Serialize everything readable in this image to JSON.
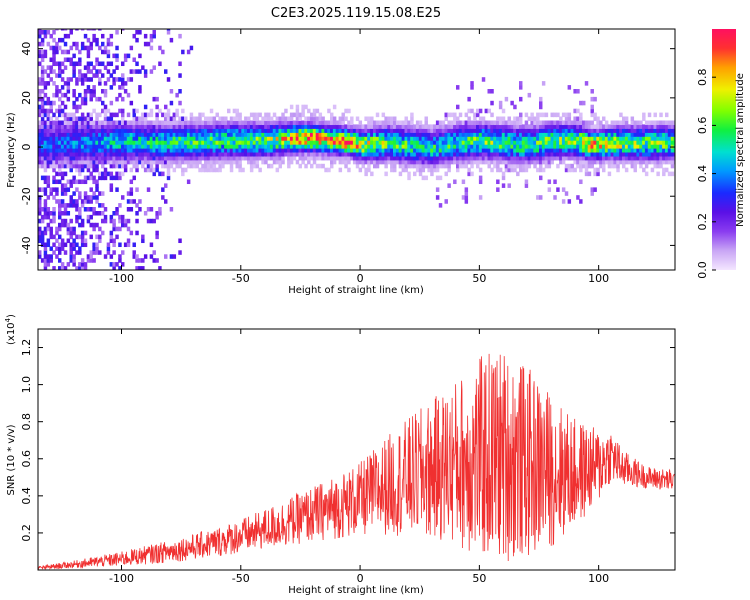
{
  "title": "C2E3.2025.119.15.08.E25",
  "chart_data": [
    {
      "type": "heatmap",
      "xlabel": "Height of straight line (km)",
      "ylabel": "Frequency (Hz)",
      "xlim": [
        -135,
        132
      ],
      "ylim": [
        -50,
        48
      ],
      "xticks": [
        -100,
        -50,
        0,
        50,
        100
      ],
      "yticks": [
        -40,
        -20,
        0,
        20,
        40
      ],
      "colorbar": {
        "label": "Normalized spectral amplitude",
        "range": [
          0,
          1
        ],
        "ticks": [
          0.0,
          0.2,
          0.4,
          0.6,
          0.8
        ],
        "colormap": [
          "#f4e6ff",
          "#c9a6f5",
          "#8a3cf0",
          "#5a10e6",
          "#1a2aff",
          "#0099ff",
          "#00e0d0",
          "#10f040",
          "#80ff00",
          "#f0f000",
          "#ffa000",
          "#ff3030",
          "#ff1060"
        ]
      },
      "ridge": [
        {
          "x": -130,
          "y": 0.5,
          "a": 0.35
        },
        {
          "x": -115,
          "y": 1,
          "a": 0.42
        },
        {
          "x": -100,
          "y": 1.5,
          "a": 0.48
        },
        {
          "x": -85,
          "y": 1,
          "a": 0.5
        },
        {
          "x": -70,
          "y": 1.5,
          "a": 0.55
        },
        {
          "x": -55,
          "y": 2,
          "a": 0.55
        },
        {
          "x": -40,
          "y": 2,
          "a": 0.6
        },
        {
          "x": -28,
          "y": 3,
          "a": 0.8
        },
        {
          "x": -20,
          "y": 3,
          "a": 0.85
        },
        {
          "x": -10,
          "y": 2,
          "a": 0.85
        },
        {
          "x": -5,
          "y": 1.5,
          "a": 0.9
        },
        {
          "x": 0,
          "y": 0,
          "a": 0.7
        },
        {
          "x": 10,
          "y": 1,
          "a": 0.6
        },
        {
          "x": 20,
          "y": 0,
          "a": 0.55
        },
        {
          "x": 30,
          "y": -1,
          "a": 0.5
        },
        {
          "x": 40,
          "y": 1,
          "a": 0.55
        },
        {
          "x": 50,
          "y": 2,
          "a": 0.6
        },
        {
          "x": 60,
          "y": 1,
          "a": 0.6
        },
        {
          "x": 70,
          "y": 0,
          "a": 0.55
        },
        {
          "x": 80,
          "y": 2,
          "a": 0.6
        },
        {
          "x": 90,
          "y": 2,
          "a": 0.65
        },
        {
          "x": 97,
          "y": 0,
          "a": 0.85
        },
        {
          "x": 105,
          "y": 1,
          "a": 0.7
        },
        {
          "x": 120,
          "y": 1,
          "a": 0.6
        },
        {
          "x": 132,
          "y": 1,
          "a": 0.6
        }
      ]
    },
    {
      "type": "line",
      "xlabel": "Height of straight line (km)",
      "ylabel": "SNR (10 * v/v)",
      "scale_note": "(x10",
      "scale_exp": "4",
      "scale_close": ")",
      "xlim": [
        -135,
        132
      ],
      "ylim": [
        0,
        1.3
      ],
      "xticks": [
        -100,
        -50,
        0,
        50,
        100
      ],
      "yticks": [
        0.2,
        0.4,
        0.6,
        0.8,
        1.0,
        1.2
      ],
      "color": "#f03030",
      "series": [
        {
          "x": [
            -135,
            -120,
            -100,
            -80,
            -60,
            -45,
            -30,
            -15,
            0,
            10,
            20,
            30,
            40,
            50,
            55,
            60,
            70,
            80,
            90,
            100,
            105,
            110,
            120,
            132
          ],
          "y": [
            0.01,
            0.03,
            0.06,
            0.1,
            0.15,
            0.2,
            0.26,
            0.32,
            0.38,
            0.45,
            0.5,
            0.54,
            0.58,
            0.6,
            0.62,
            0.62,
            0.58,
            0.54,
            0.52,
            0.56,
            0.62,
            0.55,
            0.5,
            0.48
          ],
          "spread": [
            0.01,
            0.02,
            0.04,
            0.06,
            0.08,
            0.1,
            0.13,
            0.16,
            0.2,
            0.26,
            0.32,
            0.38,
            0.45,
            0.55,
            0.58,
            0.58,
            0.52,
            0.42,
            0.3,
            0.2,
            0.15,
            0.1,
            0.06,
            0.06
          ]
        }
      ]
    }
  ]
}
